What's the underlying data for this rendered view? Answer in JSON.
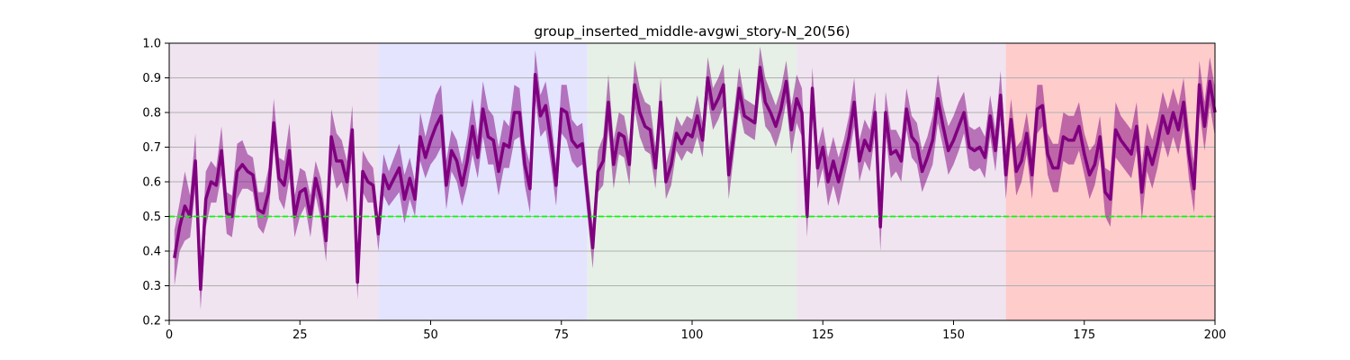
{
  "chart_data": {
    "type": "line",
    "title": "group_inserted_middle-avgwi_story-N_20(56)",
    "xlabel": "",
    "ylabel": "",
    "xlim": [
      0,
      200
    ],
    "ylim": [
      0.2,
      1.0
    ],
    "xticks": [
      0,
      25,
      50,
      75,
      100,
      125,
      150,
      175,
      200
    ],
    "yticks": [
      0.2,
      0.3,
      0.4,
      0.5,
      0.6,
      0.7,
      0.8,
      0.9,
      1.0
    ],
    "grid": "horizontal",
    "legend": "none",
    "colors": {
      "line": "#800080",
      "band": "#800080",
      "reference": "#00ff00"
    },
    "background_regions": [
      {
        "x0": 0,
        "x1": 40,
        "color": "#f0e4f0"
      },
      {
        "x0": 40,
        "x1": 80,
        "color": "#e4e4ff"
      },
      {
        "x0": 80,
        "x1": 120,
        "color": "#e6f0e6"
      },
      {
        "x0": 120,
        "x1": 160,
        "color": "#f0e4f0"
      },
      {
        "x0": 160,
        "x1": 200,
        "color": "#ffcccc"
      }
    ],
    "reference_line": {
      "y": 0.5,
      "style": "dashed"
    },
    "series": [
      {
        "x_start": 1,
        "x_step": 1,
        "values": [
          0.38,
          0.47,
          0.53,
          0.5,
          0.66,
          0.29,
          0.55,
          0.6,
          0.59,
          0.69,
          0.51,
          0.5,
          0.63,
          0.65,
          0.63,
          0.62,
          0.52,
          0.51,
          0.57,
          0.77,
          0.61,
          0.59,
          0.69,
          0.5,
          0.57,
          0.58,
          0.5,
          0.61,
          0.55,
          0.43,
          0.73,
          0.66,
          0.66,
          0.6,
          0.75,
          0.31,
          0.63,
          0.6,
          0.59,
          0.45,
          0.62,
          0.58,
          0.61,
          0.64,
          0.55,
          0.61,
          0.55,
          0.73,
          0.67,
          0.72,
          0.76,
          0.79,
          0.59,
          0.69,
          0.66,
          0.59,
          0.66,
          0.76,
          0.67,
          0.81,
          0.73,
          0.72,
          0.63,
          0.71,
          0.7,
          0.8,
          0.8,
          0.65,
          0.58,
          0.91,
          0.79,
          0.82,
          0.72,
          0.59,
          0.81,
          0.8,
          0.72,
          0.7,
          0.71,
          0.56,
          0.41,
          0.63,
          0.66,
          0.83,
          0.65,
          0.74,
          0.73,
          0.65,
          0.88,
          0.8,
          0.76,
          0.75,
          0.64,
          0.83,
          0.6,
          0.65,
          0.74,
          0.71,
          0.74,
          0.73,
          0.79,
          0.72,
          0.9,
          0.81,
          0.84,
          0.88,
          0.62,
          0.74,
          0.87,
          0.79,
          0.78,
          0.77,
          0.93,
          0.83,
          0.8,
          0.76,
          0.81,
          0.89,
          0.75,
          0.84,
          0.8,
          0.5,
          0.87,
          0.64,
          0.7,
          0.6,
          0.66,
          0.6,
          0.66,
          0.73,
          0.83,
          0.66,
          0.72,
          0.69,
          0.8,
          0.47,
          0.8,
          0.68,
          0.69,
          0.66,
          0.81,
          0.73,
          0.71,
          0.63,
          0.67,
          0.72,
          0.84,
          0.76,
          0.69,
          0.72,
          0.76,
          0.8,
          0.7,
          0.69,
          0.7,
          0.67,
          0.79,
          0.69,
          0.85,
          0.62,
          0.78,
          0.63,
          0.66,
          0.74,
          0.62,
          0.81,
          0.82,
          0.68,
          0.64,
          0.64,
          0.73,
          0.72,
          0.72,
          0.76,
          0.68,
          0.62,
          0.65,
          0.73,
          0.57,
          0.55,
          0.75,
          0.72,
          0.7,
          0.68,
          0.76,
          0.57,
          0.7,
          0.65,
          0.71,
          0.79,
          0.74,
          0.8,
          0.75,
          0.83,
          0.68,
          0.58,
          0.88,
          0.76,
          0.89,
          0.8
        ],
        "band_halfwidth": [
          0.08,
          0.07,
          0.1,
          0.06,
          0.08,
          0.06,
          0.08,
          0.06,
          0.05,
          0.07,
          0.06,
          0.06,
          0.08,
          0.07,
          0.05,
          0.05,
          0.05,
          0.06,
          0.07,
          0.07,
          0.06,
          0.07,
          0.08,
          0.06,
          0.07,
          0.05,
          0.06,
          0.05,
          0.06,
          0.06,
          0.08,
          0.08,
          0.06,
          0.06,
          0.07,
          0.05,
          0.06,
          0.06,
          0.05,
          0.05,
          0.06,
          0.05,
          0.06,
          0.07,
          0.07,
          0.06,
          0.05,
          0.07,
          0.06,
          0.07,
          0.09,
          0.09,
          0.07,
          0.06,
          0.06,
          0.06,
          0.07,
          0.08,
          0.06,
          0.08,
          0.08,
          0.07,
          0.07,
          0.07,
          0.06,
          0.08,
          0.07,
          0.06,
          0.07,
          0.07,
          0.06,
          0.07,
          0.07,
          0.06,
          0.07,
          0.08,
          0.06,
          0.06,
          0.06,
          0.06,
          0.06,
          0.06,
          0.07,
          0.08,
          0.07,
          0.06,
          0.06,
          0.06,
          0.07,
          0.07,
          0.07,
          0.07,
          0.06,
          0.07,
          0.05,
          0.06,
          0.05,
          0.05,
          0.05,
          0.05,
          0.06,
          0.05,
          0.06,
          0.06,
          0.06,
          0.06,
          0.07,
          0.06,
          0.06,
          0.05,
          0.05,
          0.05,
          0.06,
          0.07,
          0.06,
          0.06,
          0.06,
          0.06,
          0.07,
          0.07,
          0.07,
          0.06,
          0.06,
          0.06,
          0.06,
          0.07,
          0.07,
          0.07,
          0.06,
          0.06,
          0.07,
          0.06,
          0.06,
          0.06,
          0.06,
          0.07,
          0.06,
          0.07,
          0.06,
          0.06,
          0.06,
          0.06,
          0.06,
          0.06,
          0.06,
          0.07,
          0.07,
          0.06,
          0.07,
          0.07,
          0.07,
          0.06,
          0.06,
          0.06,
          0.06,
          0.06,
          0.06,
          0.06,
          0.07,
          0.07,
          0.06,
          0.07,
          0.06,
          0.06,
          0.07,
          0.07,
          0.06,
          0.06,
          0.07,
          0.07,
          0.07,
          0.07,
          0.07,
          0.07,
          0.06,
          0.07,
          0.06,
          0.06,
          0.07,
          0.08,
          0.08,
          0.07,
          0.07,
          0.07,
          0.07,
          0.08,
          0.07,
          0.07,
          0.07,
          0.07,
          0.07,
          0.07,
          0.07,
          0.07,
          0.07,
          0.07,
          0.07,
          0.07,
          0.07,
          0.07
        ]
      }
    ]
  }
}
